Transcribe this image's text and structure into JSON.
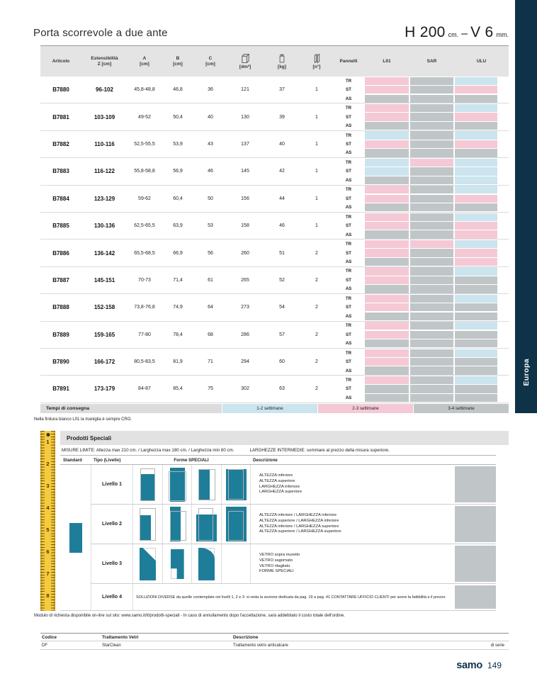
{
  "colors": {
    "cyan": "#cbe4ee",
    "pink": "#f4c9d5",
    "gray": "#c0c6c7",
    "teal": "#1e7e9a",
    "navy": "#0e3349",
    "header_gray": "#e4e4e4"
  },
  "header": {
    "title": "Porta scorrevole a due ante",
    "size": {
      "h": "H 200",
      "h_unit": "cm.",
      "sep": "–",
      "v": "V 6",
      "v_unit": "mm."
    }
  },
  "side_tab": {
    "label": "Europa"
  },
  "table": {
    "col_headers": [
      {
        "key": "articolo",
        "line1": "Articolo",
        "line2": ""
      },
      {
        "key": "estensibilita",
        "line1": "Estensibilità",
        "line2": "Z [cm]"
      },
      {
        "key": "a",
        "line1": "A",
        "line2": "[cm]"
      },
      {
        "key": "b",
        "line1": "B",
        "line2": "[cm]"
      },
      {
        "key": "c",
        "line1": "C",
        "line2": "[cm]"
      },
      {
        "key": "dm2",
        "icon": "surface-icon",
        "line1": "",
        "line2": "[dm²]"
      },
      {
        "key": "kg",
        "icon": "weight-icon",
        "line1": "",
        "line2": "[kg]"
      },
      {
        "key": "n",
        "icon": "panels-icon",
        "line1": "",
        "line2": "[n°]"
      },
      {
        "key": "pannelli",
        "line1": "Pannelli",
        "line2": ""
      },
      {
        "key": "l01",
        "line1": "L01",
        "line2": ""
      },
      {
        "key": "sar",
        "line1": "SAR",
        "line2": ""
      },
      {
        "key": "ulu",
        "line1": "ULU",
        "line2": ""
      }
    ],
    "rows": [
      {
        "articolo": "B7880",
        "z": "96-102",
        "a": "45,8-48,8",
        "b": "46,8",
        "c": "36",
        "dm2": "121",
        "kg": "37",
        "n": "1",
        "sub": [
          [
            "TR",
            "pink",
            "gray",
            "cyan"
          ],
          [
            "ST",
            "pink",
            "gray",
            "pink"
          ],
          [
            "AS",
            "gray",
            "gray",
            "gray"
          ]
        ]
      },
      {
        "articolo": "B7881",
        "z": "103-109",
        "a": "49-52",
        "b": "50,4",
        "c": "40",
        "dm2": "130",
        "kg": "39",
        "n": "1",
        "sub": [
          [
            "TR",
            "pink",
            "gray",
            "cyan"
          ],
          [
            "ST",
            "pink",
            "gray",
            "pink"
          ],
          [
            "AS",
            "gray",
            "gray",
            "gray"
          ]
        ]
      },
      {
        "articolo": "B7882",
        "z": "110-116",
        "a": "52,5-55,5",
        "b": "53,9",
        "c": "43",
        "dm2": "137",
        "kg": "40",
        "n": "1",
        "sub": [
          [
            "TR",
            "cyan",
            "gray",
            "cyan"
          ],
          [
            "ST",
            "pink",
            "gray",
            "pink"
          ],
          [
            "AS",
            "gray",
            "gray",
            "gray"
          ]
        ]
      },
      {
        "articolo": "B7883",
        "z": "116-122",
        "a": "55,8-58,8",
        "b": "56,9",
        "c": "46",
        "dm2": "145",
        "kg": "42",
        "n": "1",
        "sub": [
          [
            "TR",
            "cyan",
            "pink",
            "cyan"
          ],
          [
            "ST",
            "cyan",
            "gray",
            "cyan"
          ],
          [
            "AS",
            "gray",
            "gray",
            "cyan"
          ]
        ]
      },
      {
        "articolo": "B7884",
        "z": "123-129",
        "a": "59-62",
        "b": "60,4",
        "c": "50",
        "dm2": "156",
        "kg": "44",
        "n": "1",
        "sub": [
          [
            "TR",
            "pink",
            "gray",
            "cyan"
          ],
          [
            "ST",
            "pink",
            "gray",
            "pink"
          ],
          [
            "AS",
            "gray",
            "gray",
            "gray"
          ]
        ]
      },
      {
        "articolo": "B7885",
        "z": "130-136",
        "a": "62,5-65,5",
        "b": "63,9",
        "c": "53",
        "dm2": "158",
        "kg": "46",
        "n": "1",
        "sub": [
          [
            "TR",
            "pink",
            "gray",
            "cyan"
          ],
          [
            "ST",
            "pink",
            "gray",
            "pink"
          ],
          [
            "AS",
            "gray",
            "gray",
            "pink"
          ]
        ]
      },
      {
        "articolo": "B7886",
        "z": "136-142",
        "a": "65,5-68,5",
        "b": "66,9",
        "c": "56",
        "dm2": "260",
        "kg": "51",
        "n": "2",
        "sub": [
          [
            "TR",
            "pink",
            "pink",
            "cyan"
          ],
          [
            "ST",
            "pink",
            "gray",
            "pink"
          ],
          [
            "AS",
            "gray",
            "gray",
            "pink"
          ]
        ]
      },
      {
        "articolo": "B7887",
        "z": "145-151",
        "a": "70-73",
        "b": "71,4",
        "c": "61",
        "dm2": "265",
        "kg": "52",
        "n": "2",
        "sub": [
          [
            "TR",
            "pink",
            "gray",
            "cyan"
          ],
          [
            "ST",
            "pink",
            "gray",
            "gray"
          ],
          [
            "AS",
            "gray",
            "gray",
            "gray"
          ]
        ]
      },
      {
        "articolo": "B7888",
        "z": "152-158",
        "a": "73,8-76,8",
        "b": "74,9",
        "c": "64",
        "dm2": "273",
        "kg": "54",
        "n": "2",
        "sub": [
          [
            "TR",
            "pink",
            "gray",
            "cyan"
          ],
          [
            "ST",
            "pink",
            "gray",
            "gray"
          ],
          [
            "AS",
            "gray",
            "gray",
            "gray"
          ]
        ]
      },
      {
        "articolo": "B7889",
        "z": "159-165",
        "a": "77-80",
        "b": "78,4",
        "c": "68",
        "dm2": "286",
        "kg": "57",
        "n": "2",
        "sub": [
          [
            "TR",
            "pink",
            "gray",
            "cyan"
          ],
          [
            "ST",
            "pink",
            "gray",
            "gray"
          ],
          [
            "AS",
            "gray",
            "gray",
            "gray"
          ]
        ]
      },
      {
        "articolo": "B7890",
        "z": "166-172",
        "a": "80,5-83,5",
        "b": "81,9",
        "c": "71",
        "dm2": "294",
        "kg": "60",
        "n": "2",
        "sub": [
          [
            "TR",
            "pink",
            "gray",
            "cyan"
          ],
          [
            "ST",
            "pink",
            "gray",
            "gray"
          ],
          [
            "AS",
            "gray",
            "gray",
            "gray"
          ]
        ]
      },
      {
        "articolo": "B7891",
        "z": "173-179",
        "a": "84-87",
        "b": "85,4",
        "c": "75",
        "dm2": "302",
        "kg": "63",
        "n": "2",
        "sub": [
          [
            "TR",
            "pink",
            "gray",
            "cyan"
          ],
          [
            "ST",
            "gray",
            "gray",
            "gray"
          ],
          [
            "AS",
            "gray",
            "gray",
            "gray"
          ]
        ]
      }
    ]
  },
  "legend": {
    "label": "Tempi di consegna",
    "items": [
      {
        "label": "1-2 settimane",
        "color": "cyan"
      },
      {
        "label": "2-3 settimane",
        "color": "pink"
      },
      {
        "label": "3-4 settimane",
        "color": "gray"
      }
    ]
  },
  "note": "Nella finitura bianco L01 la maniglia è sempre CRO.",
  "speciali": {
    "title": "Prodotti Speciali",
    "misure": "MISURE LIMITE: Altezza max 210 cm. / Larghezza max 180 cm. / Larghezza min 80 cm.",
    "larghezze": "LARGHEZZE INTERMEDIE: sommare al prezzo della misura superiore.",
    "headers": {
      "standard": "Standard",
      "tipo": "Tipo (Livello)",
      "forme": "Forme SPECIALI",
      "descrizione": "Descrizione"
    },
    "ruler_numbers": [
      "1",
      "2",
      "3",
      "4",
      "5",
      "6",
      "7",
      "8"
    ],
    "rows": [
      {
        "tipo": "Livello 1",
        "shapes": [
          "h-inf",
          "h-sup",
          "w-inf",
          "w-sup"
        ],
        "desc": [
          "ALTEZZA inferiore",
          "ALTEZZA superiore",
          "LARGHEZZA inferiore",
          "LARGHEZZA superiore"
        ]
      },
      {
        "tipo": "Livello 2",
        "shapes": [
          "hw-inf",
          "hsup-winf",
          "hinf-wsup",
          "hw-sup"
        ],
        "desc": [
          "ALTEZZA inferiore / LARGHEZZA inferiore",
          "ALTEZZA superiore / LARGHEZZA inferiore",
          "ALTEZZA inferiore / LARGHEZZA superiore",
          "ALTEZZA superiore / LARGHEZZA superiore"
        ]
      },
      {
        "tipo": "Livello 3",
        "shapes": [
          "diag",
          "notch",
          "curve",
          ""
        ],
        "desc": [
          "VETRO sopra muretto",
          "VETRO sagomato",
          "VETRO ritagliato",
          "FORME SPECIALI"
        ]
      },
      {
        "tipo": "Livello 4",
        "text": "SOLUZIONI DIVERSE da quelle contemplate nei livelli 1, 2 e 3: si veda la sezione dedicata da pag. 19 a pag. 41 CONTATTARE UFFICIO CLIENTI per avere la fattibilità e il prezzo"
      }
    ]
  },
  "modulo_note": "Modulo di richiesta disponibile on-line sul sito: www.samo.it/it/prodotti-speciali - In caso di annullamento dopo l'accettazione, sarà addebitato il costo totale dell'ordine.",
  "vetri": {
    "headers": [
      "Codice",
      "Trattamento Vetri",
      "Descrizione"
    ],
    "rows": [
      [
        "DF",
        "StarClean",
        "Trattamento vetro anticalcare",
        "di serie"
      ]
    ]
  },
  "footer": {
    "brand": "samo",
    "page": "149"
  }
}
